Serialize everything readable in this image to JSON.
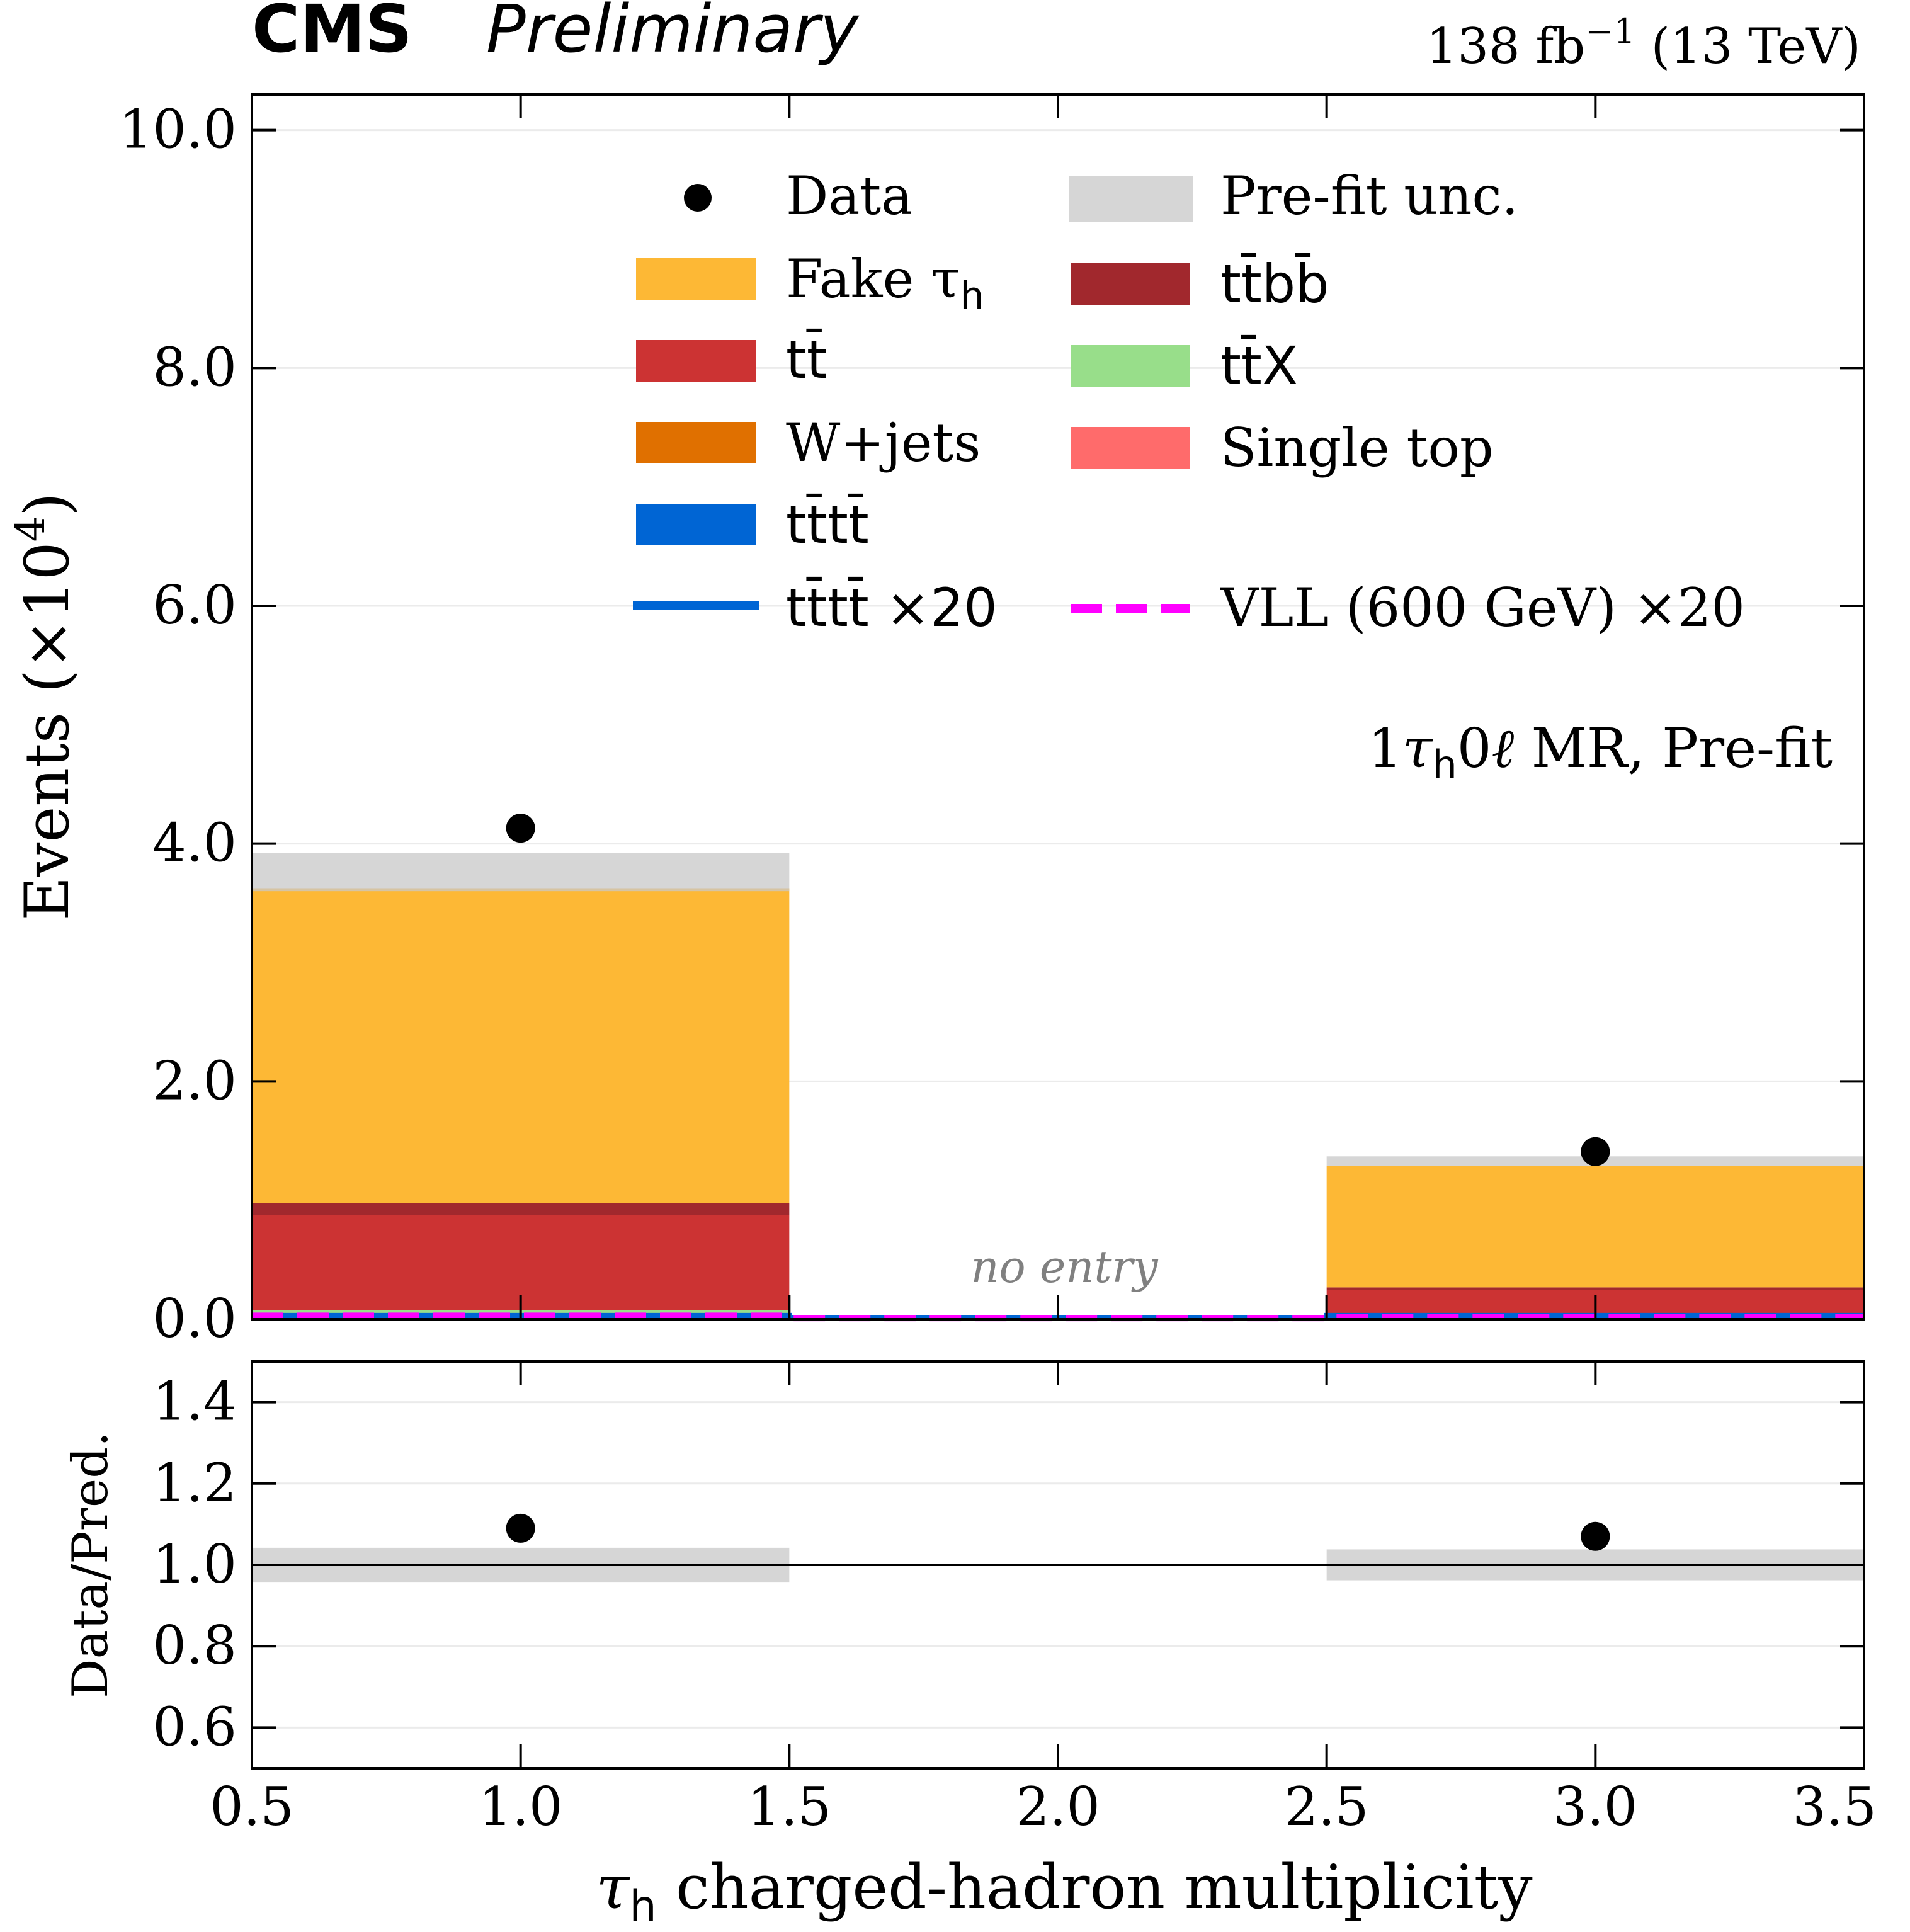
{
  "header": {
    "experiment": "CMS",
    "status": "Preliminary",
    "lumi": "138 fb",
    "lumi_exp": "−1",
    "energy": "(13 TeV)"
  },
  "region_label": {
    "prefix": "1",
    "tau": "τ",
    "tau_sub": "h",
    "zero": "0",
    "ell": "ℓ",
    "suffix": " MR, Pre-fit"
  },
  "no_entry_label": "no entry",
  "legend": {
    "data": "Data",
    "fake_tau": "Fake τ",
    "fake_tau_sub": "h",
    "ttbar": "tt̄",
    "wjets": "W+jets",
    "tttt": "tt̄tt̄",
    "tttt_x20": "tt̄tt̄ ×20",
    "prefit_unc": "Pre-fit unc.",
    "ttbb": "tt̄bb̄",
    "ttx": "tt̄X",
    "single_top": "Single top",
    "vll": "VLL (600 GeV) ×20"
  },
  "colors": {
    "fake_tau": "#fdb835",
    "ttbar": "#cc3333",
    "ttbb": "#a1282d",
    "ttx": "#98de8a",
    "wjets": "#e07000",
    "single_top": "#ff6b6b",
    "tttt": "#0065d4",
    "unc": "#c8c8c8",
    "vll": "#ff00ff",
    "data": "#000000"
  },
  "chart_data": [
    {
      "type": "bar",
      "panel": "main",
      "bin_edges": [
        0.5,
        1.5,
        2.5,
        3.5
      ],
      "x": [
        1.0,
        2.0,
        3.0
      ],
      "ylabel": "Events (×10",
      "ylabel_exp": "4",
      "ylabel_close": ")",
      "xlim": [
        0.5,
        3.5
      ],
      "ylim": [
        0.0,
        10.3
      ],
      "yticks": [
        0.0,
        2.0,
        4.0,
        6.0,
        8.0,
        10.0
      ],
      "ytick_labels": [
        "0.0",
        "2.0",
        "4.0",
        "6.0",
        "8.0",
        "10.0"
      ],
      "units": "×10^4 events",
      "stack_order": [
        "tttt",
        "single_top",
        "wjets",
        "ttx",
        "ttbar",
        "ttbb",
        "fake_tau"
      ],
      "series": [
        {
          "name": "tttt",
          "values": [
            0.005,
            0.0,
            0.003
          ]
        },
        {
          "name": "single_top",
          "values": [
            0.03,
            0.0,
            0.01
          ]
        },
        {
          "name": "wjets",
          "values": [
            0.01,
            0.0,
            0.005
          ]
        },
        {
          "name": "ttx",
          "values": [
            0.03,
            0.0,
            0.01
          ]
        },
        {
          "name": "ttbar",
          "values": [
            0.8,
            0.0,
            0.22
          ]
        },
        {
          "name": "ttbb",
          "values": [
            0.1,
            0.0,
            0.02
          ]
        },
        {
          "name": "fake_tau",
          "values": [
            2.65,
            0.0,
            1.02
          ]
        }
      ],
      "prefit_unc": {
        "low": [
          3.6,
          0.0,
          1.29
        ],
        "high": [
          3.92,
          0.0,
          1.37
        ]
      },
      "data": [
        4.13,
        null,
        1.41
      ],
      "signal_lines": [
        {
          "name": "tttt_x20",
          "values": [
            0.03,
            0.01,
            0.03
          ]
        },
        {
          "name": "vll",
          "values": [
            0.03,
            0.01,
            0.02
          ]
        }
      ]
    },
    {
      "type": "scatter",
      "panel": "ratio",
      "ylabel": "Data/Pred.",
      "xlabel_tau": "τ",
      "xlabel_tau_sub": "h",
      "xlabel": " charged-hadron multiplicity",
      "xlim": [
        0.5,
        3.5
      ],
      "ylim": [
        0.5,
        1.5
      ],
      "xticks": [
        0.5,
        1.0,
        1.5,
        2.0,
        2.5,
        3.0,
        3.5
      ],
      "xtick_labels": [
        "0.5",
        "1.0",
        "1.5",
        "2.0",
        "2.5",
        "3.0",
        "3.5"
      ],
      "yticks": [
        0.6,
        0.8,
        1.0,
        1.2,
        1.4
      ],
      "ytick_labels": [
        "0.6",
        "0.8",
        "1.0",
        "1.2",
        "1.4"
      ],
      "ratio": [
        1.09,
        null,
        1.07
      ],
      "unc_band": {
        "low": [
          0.958,
          null,
          0.962
        ],
        "high": [
          1.042,
          null,
          1.038
        ]
      }
    }
  ]
}
